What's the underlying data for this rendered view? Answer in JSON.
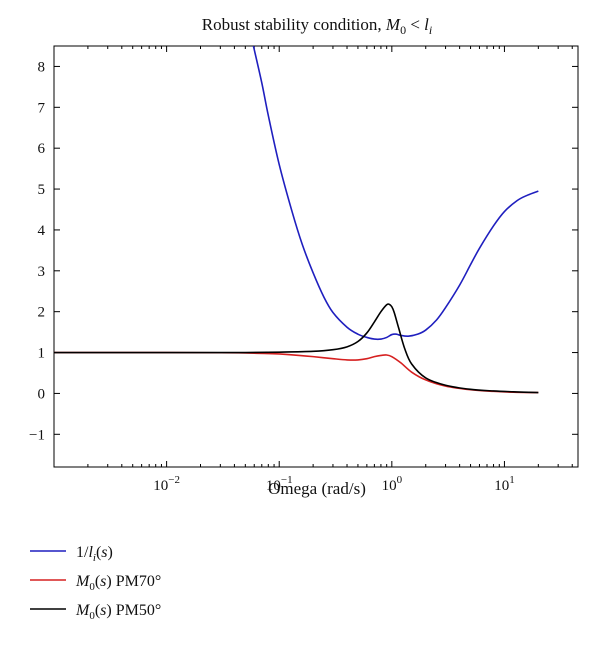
{
  "chart_data": {
    "type": "line",
    "title": "Robust stability condition, M0 < li",
    "title_parts": {
      "prefix": "Robust stability condition, ",
      "lhs_main": "M",
      "lhs_sub": "0",
      "op": " < ",
      "rhs_main": "l",
      "rhs_sub": "i"
    },
    "xlabel": "Omega (rad/s)",
    "ylabel": "",
    "x_scale": "log",
    "xlim": [
      0.001,
      45
    ],
    "ylim": [
      -1.8,
      8.5
    ],
    "x_ticks": [
      {
        "value": 0.01,
        "base": "10",
        "exp": "−2"
      },
      {
        "value": 0.1,
        "base": "10",
        "exp": "−1"
      },
      {
        "value": 1,
        "base": "10",
        "exp": "0"
      },
      {
        "value": 10,
        "base": "10",
        "exp": "1"
      }
    ],
    "y_ticks": [
      {
        "value": -1,
        "label": "−1"
      },
      {
        "value": 0,
        "label": "0"
      },
      {
        "value": 1,
        "label": "1"
      },
      {
        "value": 2,
        "label": "2"
      },
      {
        "value": 3,
        "label": "3"
      },
      {
        "value": 4,
        "label": "4"
      },
      {
        "value": 5,
        "label": "5"
      },
      {
        "value": 6,
        "label": "6"
      },
      {
        "value": 7,
        "label": "7"
      },
      {
        "value": 8,
        "label": "8"
      }
    ],
    "grid": false,
    "legend_position": "below-left",
    "series": [
      {
        "name": "1/li(s)",
        "legend": {
          "parts": [
            {
              "t": "1/"
            },
            {
              "t": "l",
              "i": true
            },
            {
              "t": "i",
              "sub": true,
              "i": true
            },
            {
              "t": "("
            },
            {
              "t": "s",
              "i": true
            },
            {
              "t": ")"
            }
          ]
        },
        "color": "#1f1fbf",
        "x": [
          0.059,
          0.07,
          0.08,
          0.1,
          0.13,
          0.16,
          0.2,
          0.25,
          0.3,
          0.4,
          0.5,
          0.6,
          0.7,
          0.8,
          0.9,
          1.0,
          1.1,
          1.2,
          1.4,
          1.7,
          2.0,
          2.5,
          3,
          4,
          5,
          6,
          8,
          10,
          13,
          16,
          20
        ],
        "y": [
          8.5,
          7.6,
          6.8,
          5.6,
          4.45,
          3.65,
          2.95,
          2.35,
          1.98,
          1.62,
          1.45,
          1.37,
          1.33,
          1.33,
          1.37,
          1.44,
          1.45,
          1.42,
          1.4,
          1.45,
          1.55,
          1.8,
          2.1,
          2.65,
          3.15,
          3.55,
          4.1,
          4.45,
          4.72,
          4.85,
          4.95
        ]
      },
      {
        "name": "M0(s) PM70°",
        "legend": {
          "parts": [
            {
              "t": "M",
              "i": true
            },
            {
              "t": "0",
              "sub": true
            },
            {
              "t": "("
            },
            {
              "t": "s",
              "i": true
            },
            {
              "t": ") PM70°"
            }
          ]
        },
        "color": "#d62020",
        "x": [
          0.001,
          0.01,
          0.03,
          0.05,
          0.08,
          0.1,
          0.15,
          0.2,
          0.3,
          0.4,
          0.5,
          0.6,
          0.7,
          0.8,
          0.9,
          1.0,
          1.2,
          1.5,
          2,
          3,
          5,
          8,
          12,
          20
        ],
        "y": [
          1.0,
          1.0,
          0.995,
          0.99,
          0.975,
          0.965,
          0.93,
          0.9,
          0.85,
          0.82,
          0.82,
          0.85,
          0.9,
          0.93,
          0.94,
          0.9,
          0.75,
          0.52,
          0.33,
          0.18,
          0.09,
          0.05,
          0.03,
          0.02
        ]
      },
      {
        "name": "M0(s) PM50°",
        "legend": {
          "parts": [
            {
              "t": "M",
              "i": true
            },
            {
              "t": "0",
              "sub": true
            },
            {
              "t": "("
            },
            {
              "t": "s",
              "i": true
            },
            {
              "t": ") PM50°"
            }
          ]
        },
        "color": "#000000",
        "x": [
          0.001,
          0.01,
          0.03,
          0.05,
          0.1,
          0.2,
          0.3,
          0.4,
          0.5,
          0.6,
          0.7,
          0.8,
          0.9,
          0.95,
          1.0,
          1.05,
          1.15,
          1.3,
          1.5,
          2,
          3,
          5,
          8,
          12,
          20
        ],
        "y": [
          1.0,
          1.0,
          1.0,
          1.0,
          1.01,
          1.03,
          1.07,
          1.14,
          1.27,
          1.48,
          1.75,
          2.0,
          2.17,
          2.18,
          2.12,
          1.98,
          1.6,
          1.1,
          0.72,
          0.38,
          0.2,
          0.1,
          0.06,
          0.04,
          0.02
        ]
      }
    ]
  }
}
